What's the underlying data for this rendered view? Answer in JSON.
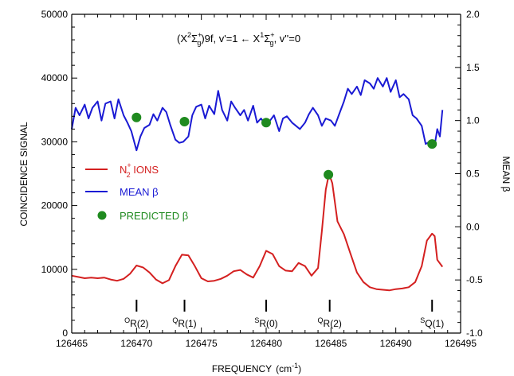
{
  "chart_data": {
    "type": "line",
    "title": "(X²Σg⁺)9f, v'=1 ← X¹Σg⁺, v''=0",
    "title_parts": {
      "prefix": "(X",
      "state1": "2",
      "sym1": "Σ",
      "sub1": "g",
      "sup1": "+",
      "mid": ")9f, v'=1",
      "arrow": "←",
      "x2": "X",
      "state2": "1",
      "sym2": "Σ",
      "sub2": "g",
      "sup2": "+",
      "suffix": ", v''=0"
    },
    "xlabel": "FREQUENCY",
    "xlabel_unit": "(cm",
    "xlabel_unit_sup": "-1",
    "xlabel_unit_end": ")",
    "ylabel_left": "COINCIDENCE SIGNAL",
    "ylabel_right": "MEAN β",
    "xlim": [
      126465,
      126495
    ],
    "ylim_left": [
      0,
      50000
    ],
    "ylim_right": [
      -1.0,
      2.0
    ],
    "x_ticks": [
      "126465",
      "126470",
      "126475",
      "126480",
      "126485",
      "126490",
      "126495"
    ],
    "y_left_ticks": [
      "0",
      "10000",
      "20000",
      "30000",
      "40000",
      "50000"
    ],
    "y_right_ticks": [
      "-1.0",
      "-0.5",
      "0.0",
      "0.5",
      "1.0",
      "1.5",
      "2.0"
    ],
    "legend_position": "middle-left",
    "legend": [
      {
        "label_main": "N",
        "label_sub": "2",
        "label_sup": "+",
        "label_tail": " IONS",
        "color": "#d42020"
      },
      {
        "label_main": "MEAN β",
        "color": "#1a1ad4"
      },
      {
        "label_main": "PREDICTED β",
        "color": "#1f8a1f"
      }
    ],
    "line_labels": [
      {
        "sup": "O",
        "main": "R(2)",
        "x": 126470.0
      },
      {
        "sup": "Q",
        "main": "R(1)",
        "x": 126473.7
      },
      {
        "sup": "S",
        "main": "R(0)",
        "x": 126480.0
      },
      {
        "sup": "Q",
        "main": "R(2)",
        "x": 126484.9
      },
      {
        "sup": "S",
        "main": "Q(1)",
        "x": 126492.8
      }
    ],
    "series": [
      {
        "name": "N2+ IONS",
        "axis": "left",
        "color": "#d42020",
        "points": [
          [
            126465.0,
            9000
          ],
          [
            126465.5,
            8800
          ],
          [
            126466.0,
            8600
          ],
          [
            126466.5,
            8700
          ],
          [
            126467.0,
            8600
          ],
          [
            126467.5,
            8700
          ],
          [
            126468.0,
            8400
          ],
          [
            126468.5,
            8200
          ],
          [
            126469.0,
            8500
          ],
          [
            126469.5,
            9300
          ],
          [
            126470.0,
            10600
          ],
          [
            126470.5,
            10300
          ],
          [
            126471.0,
            9500
          ],
          [
            126471.5,
            8400
          ],
          [
            126472.0,
            7800
          ],
          [
            126472.5,
            8300
          ],
          [
            126473.0,
            10500
          ],
          [
            126473.5,
            12300
          ],
          [
            126474.0,
            12200
          ],
          [
            126474.5,
            10500
          ],
          [
            126475.0,
            8600
          ],
          [
            126475.5,
            8100
          ],
          [
            126476.0,
            8200
          ],
          [
            126476.5,
            8500
          ],
          [
            126477.0,
            9000
          ],
          [
            126477.5,
            9700
          ],
          [
            126478.0,
            9900
          ],
          [
            126478.5,
            9200
          ],
          [
            126479.0,
            8700
          ],
          [
            126479.5,
            10500
          ],
          [
            126480.0,
            12900
          ],
          [
            126480.5,
            12400
          ],
          [
            126481.0,
            10500
          ],
          [
            126481.5,
            9800
          ],
          [
            126482.0,
            9700
          ],
          [
            126482.5,
            11000
          ],
          [
            126483.0,
            10500
          ],
          [
            126483.5,
            9000
          ],
          [
            126484.0,
            10200
          ],
          [
            126484.3,
            16000
          ],
          [
            126484.6,
            22500
          ],
          [
            126484.85,
            25000
          ],
          [
            126485.1,
            23500
          ],
          [
            126485.5,
            17500
          ],
          [
            126486.0,
            15500
          ],
          [
            126486.5,
            12500
          ],
          [
            126487.0,
            9500
          ],
          [
            126487.5,
            8000
          ],
          [
            126488.0,
            7200
          ],
          [
            126488.5,
            6900
          ],
          [
            126489.0,
            6800
          ],
          [
            126489.5,
            6700
          ],
          [
            126490.0,
            6900
          ],
          [
            126490.5,
            7000
          ],
          [
            126491.0,
            7200
          ],
          [
            126491.5,
            8000
          ],
          [
            126492.0,
            10500
          ],
          [
            126492.4,
            14500
          ],
          [
            126492.8,
            15600
          ],
          [
            126493.0,
            15200
          ],
          [
            126493.2,
            11500
          ],
          [
            126493.6,
            10400
          ]
        ]
      },
      {
        "name": "MEAN β",
        "axis": "right",
        "color": "#1a1ad4",
        "points": [
          [
            126465.0,
            0.92
          ],
          [
            126465.3,
            1.12
          ],
          [
            126465.6,
            1.05
          ],
          [
            126466.0,
            1.15
          ],
          [
            126466.3,
            1.02
          ],
          [
            126466.6,
            1.12
          ],
          [
            126467.0,
            1.18
          ],
          [
            126467.3,
            1.0
          ],
          [
            126467.6,
            1.16
          ],
          [
            126468.0,
            1.18
          ],
          [
            126468.3,
            1.02
          ],
          [
            126468.6,
            1.2
          ],
          [
            126469.0,
            1.05
          ],
          [
            126469.3,
            0.98
          ],
          [
            126469.6,
            0.9
          ],
          [
            126470.0,
            0.72
          ],
          [
            126470.3,
            0.85
          ],
          [
            126470.6,
            0.93
          ],
          [
            126471.0,
            0.96
          ],
          [
            126471.3,
            1.06
          ],
          [
            126471.6,
            1.0
          ],
          [
            126472.0,
            1.12
          ],
          [
            126472.3,
            1.08
          ],
          [
            126472.6,
            0.96
          ],
          [
            126473.0,
            0.82
          ],
          [
            126473.3,
            0.79
          ],
          [
            126473.6,
            0.8
          ],
          [
            126474.0,
            0.85
          ],
          [
            126474.3,
            1.05
          ],
          [
            126474.6,
            1.13
          ],
          [
            126475.0,
            1.15
          ],
          [
            126475.3,
            1.02
          ],
          [
            126475.6,
            1.14
          ],
          [
            126476.0,
            1.06
          ],
          [
            126476.3,
            1.28
          ],
          [
            126476.6,
            1.1
          ],
          [
            126477.0,
            1.0
          ],
          [
            126477.3,
            1.18
          ],
          [
            126477.6,
            1.12
          ],
          [
            126478.0,
            1.05
          ],
          [
            126478.3,
            1.1
          ],
          [
            126478.6,
            1.0
          ],
          [
            126479.0,
            1.14
          ],
          [
            126479.3,
            0.98
          ],
          [
            126479.6,
            1.02
          ],
          [
            126480.0,
            0.95
          ],
          [
            126480.3,
            1.0
          ],
          [
            126480.6,
            1.05
          ],
          [
            126481.0,
            0.9
          ],
          [
            126481.3,
            1.02
          ],
          [
            126481.6,
            1.04
          ],
          [
            126482.0,
            0.98
          ],
          [
            126482.3,
            0.95
          ],
          [
            126482.6,
            0.92
          ],
          [
            126483.0,
            0.98
          ],
          [
            126483.3,
            1.06
          ],
          [
            126483.6,
            1.12
          ],
          [
            126484.0,
            1.05
          ],
          [
            126484.3,
            0.95
          ],
          [
            126484.6,
            1.02
          ],
          [
            126485.0,
            1.0
          ],
          [
            126485.3,
            0.95
          ],
          [
            126485.6,
            1.05
          ],
          [
            126486.0,
            1.18
          ],
          [
            126486.3,
            1.3
          ],
          [
            126486.6,
            1.25
          ],
          [
            126487.0,
            1.32
          ],
          [
            126487.3,
            1.24
          ],
          [
            126487.6,
            1.38
          ],
          [
            126488.0,
            1.35
          ],
          [
            126488.3,
            1.3
          ],
          [
            126488.6,
            1.4
          ],
          [
            126489.0,
            1.32
          ],
          [
            126489.3,
            1.4
          ],
          [
            126489.6,
            1.27
          ],
          [
            126490.0,
            1.38
          ],
          [
            126490.3,
            1.22
          ],
          [
            126490.6,
            1.25
          ],
          [
            126491.0,
            1.2
          ],
          [
            126491.3,
            1.05
          ],
          [
            126491.6,
            1.02
          ],
          [
            126492.0,
            0.95
          ],
          [
            126492.3,
            0.78
          ],
          [
            126492.6,
            0.8
          ],
          [
            126493.0,
            0.77
          ],
          [
            126493.2,
            0.92
          ],
          [
            126493.4,
            0.85
          ],
          [
            126493.6,
            1.1
          ]
        ]
      },
      {
        "name": "PREDICTED β",
        "axis": "right",
        "color": "#1f8a1f",
        "marker": "circle",
        "points": [
          [
            126470.0,
            1.03
          ],
          [
            126473.7,
            0.99
          ],
          [
            126480.0,
            0.98
          ],
          [
            126484.8,
            0.49
          ],
          [
            126492.8,
            0.78
          ]
        ]
      }
    ]
  }
}
